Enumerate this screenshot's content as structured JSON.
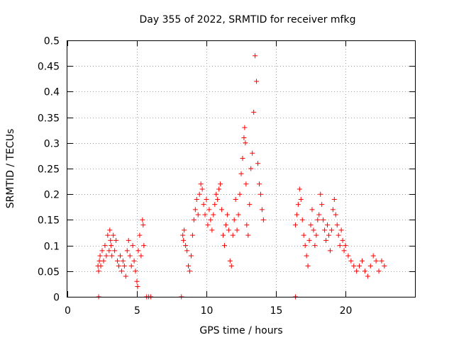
{
  "chart_data": {
    "type": "scatter",
    "title": "Day 355 of 2022, SRMTID for receiver mfkg",
    "xlabel": "GPS time / hours",
    "ylabel": "SRMTID / TECUs",
    "xlim": [
      0,
      25
    ],
    "ylim": [
      0,
      0.5
    ],
    "xticks": [
      0,
      5,
      10,
      15,
      20
    ],
    "xtick_labels": [
      "0",
      "5",
      "10",
      "15",
      "20"
    ],
    "yticks": [
      0,
      0.05,
      0.1,
      0.15,
      0.2,
      0.25,
      0.3,
      0.35,
      0.4,
      0.45,
      0.5
    ],
    "ytick_labels": [
      "0",
      "0.05",
      "0.1",
      "0.15",
      "0.2",
      "0.25",
      "0.3",
      "0.35",
      "0.4",
      "0.45",
      "0.5"
    ],
    "grid": true,
    "marker": "plus",
    "color": "#ff0000",
    "series": [
      {
        "name": "SRMTID",
        "x": [
          2.2,
          2.25,
          2.3,
          2.35,
          2.4,
          2.5,
          2.6,
          2.7,
          2.8,
          2.9,
          3.0,
          3.05,
          3.1,
          3.15,
          3.2,
          3.3,
          3.4,
          3.5,
          3.6,
          3.7,
          3.8,
          3.9,
          4.0,
          4.1,
          4.2,
          4.3,
          4.4,
          4.5,
          4.6,
          4.7,
          4.8,
          4.9,
          5.0,
          5.05,
          5.1,
          5.2,
          5.3,
          5.4,
          5.45,
          5.5,
          8.3,
          8.35,
          8.4,
          8.5,
          8.6,
          8.7,
          8.8,
          8.9,
          9.0,
          9.1,
          9.2,
          9.3,
          9.4,
          9.5,
          9.6,
          9.7,
          9.8,
          9.9,
          10.0,
          10.1,
          10.2,
          10.3,
          10.4,
          10.5,
          10.6,
          10.7,
          10.8,
          10.9,
          11.0,
          11.1,
          11.2,
          11.3,
          11.4,
          11.5,
          11.6,
          11.7,
          11.8,
          11.9,
          12.0,
          12.1,
          12.2,
          12.3,
          12.4,
          12.5,
          12.6,
          12.7,
          12.75,
          12.8,
          12.85,
          12.9,
          13.0,
          13.1,
          13.2,
          13.3,
          13.4,
          13.5,
          13.6,
          13.7,
          13.8,
          13.9,
          14.0,
          14.1,
          16.4,
          16.5,
          16.6,
          16.7,
          16.8,
          16.9,
          17.0,
          17.1,
          17.2,
          17.3,
          17.4,
          17.5,
          17.6,
          17.7,
          17.8,
          17.9,
          18.0,
          18.1,
          18.2,
          18.3,
          18.4,
          18.5,
          18.6,
          18.7,
          18.8,
          18.9,
          19.0,
          19.1,
          19.2,
          19.3,
          19.4,
          19.5,
          19.6,
          19.7,
          19.8,
          19.9,
          20.0,
          20.2,
          20.4,
          20.6,
          20.8,
          21.0,
          21.2,
          21.4,
          21.6,
          21.8,
          22.0,
          22.2,
          22.4,
          22.6,
          22.8,
          2.25,
          5.7,
          5.85,
          6.0,
          8.2,
          16.4
        ],
        "y": [
          0.06,
          0.05,
          0.07,
          0.08,
          0.06,
          0.09,
          0.07,
          0.1,
          0.08,
          0.12,
          0.09,
          0.13,
          0.11,
          0.1,
          0.08,
          0.12,
          0.09,
          0.11,
          0.07,
          0.06,
          0.08,
          0.05,
          0.07,
          0.06,
          0.04,
          0.09,
          0.11,
          0.08,
          0.06,
          0.1,
          0.07,
          0.05,
          0.03,
          0.02,
          0.09,
          0.12,
          0.08,
          0.15,
          0.14,
          0.1,
          0.12,
          0.11,
          0.13,
          0.1,
          0.09,
          0.06,
          0.05,
          0.08,
          0.12,
          0.15,
          0.17,
          0.19,
          0.16,
          0.2,
          0.22,
          0.21,
          0.18,
          0.16,
          0.19,
          0.14,
          0.17,
          0.15,
          0.13,
          0.16,
          0.18,
          0.2,
          0.19,
          0.21,
          0.22,
          0.17,
          0.12,
          0.1,
          0.14,
          0.16,
          0.13,
          0.07,
          0.06,
          0.12,
          0.15,
          0.19,
          0.13,
          0.16,
          0.2,
          0.24,
          0.27,
          0.31,
          0.33,
          0.3,
          0.22,
          0.14,
          0.12,
          0.18,
          0.25,
          0.28,
          0.36,
          0.47,
          0.42,
          0.26,
          0.22,
          0.2,
          0.17,
          0.15,
          0.14,
          0.16,
          0.18,
          0.21,
          0.19,
          0.15,
          0.12,
          0.1,
          0.08,
          0.06,
          0.11,
          0.14,
          0.17,
          0.13,
          0.1,
          0.12,
          0.15,
          0.16,
          0.2,
          0.18,
          0.15,
          0.13,
          0.11,
          0.14,
          0.12,
          0.09,
          0.13,
          0.17,
          0.19,
          0.16,
          0.14,
          0.12,
          0.1,
          0.13,
          0.11,
          0.09,
          0.1,
          0.08,
          0.07,
          0.06,
          0.05,
          0.06,
          0.07,
          0.05,
          0.04,
          0.06,
          0.08,
          0.07,
          0.05,
          0.07,
          0.06,
          0.0,
          0.0,
          0.0,
          0.0,
          0.0,
          0.0
        ]
      }
    ]
  }
}
